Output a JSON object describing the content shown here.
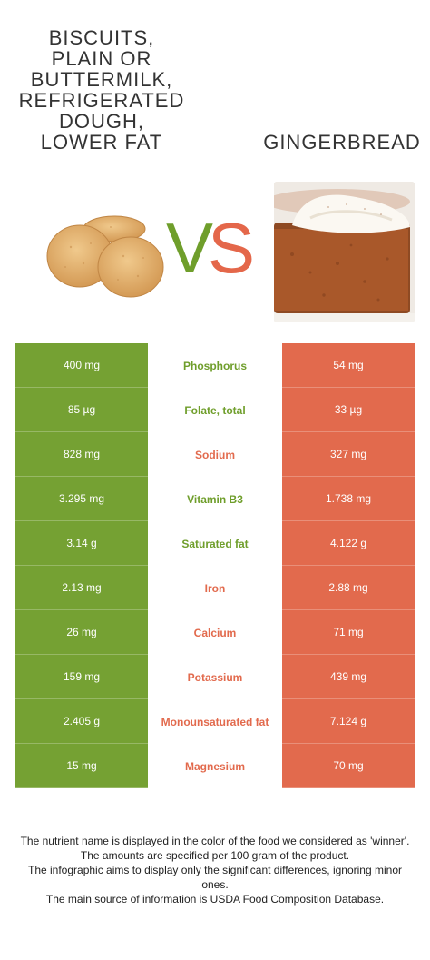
{
  "food_left": {
    "title_lines": [
      "Biscuits,",
      "plain or",
      "buttermilk,",
      "refrigerated",
      "dough,",
      "lower fat"
    ],
    "color": "#75a133"
  },
  "food_right": {
    "title": "Gingerbread",
    "color": "#e26a4d"
  },
  "vs": {
    "v": "V",
    "s": "S"
  },
  "rows": [
    {
      "left": "400 mg",
      "nutrient": "Phosphorus",
      "right": "54 mg",
      "winner": "left"
    },
    {
      "left": "85 µg",
      "nutrient": "Folate, total",
      "right": "33 µg",
      "winner": "left"
    },
    {
      "left": "828 mg",
      "nutrient": "Sodium",
      "right": "327 mg",
      "winner": "right"
    },
    {
      "left": "3.295 mg",
      "nutrient": "Vitamin B3",
      "right": "1.738 mg",
      "winner": "left"
    },
    {
      "left": "3.14 g",
      "nutrient": "Saturated fat",
      "right": "4.122 g",
      "winner": "left"
    },
    {
      "left": "2.13 mg",
      "nutrient": "Iron",
      "right": "2.88 mg",
      "winner": "right"
    },
    {
      "left": "26 mg",
      "nutrient": "Calcium",
      "right": "71 mg",
      "winner": "right"
    },
    {
      "left": "159 mg",
      "nutrient": "Potassium",
      "right": "439 mg",
      "winner": "right"
    },
    {
      "left": "2.405 g",
      "nutrient": "Monounsaturated fat",
      "right": "7.124 g",
      "winner": "right"
    },
    {
      "left": "15 mg",
      "nutrient": "Magnesium",
      "right": "70 mg",
      "winner": "right"
    }
  ],
  "footer": {
    "line1": "The nutrient name is displayed in the color of the food we considered as 'winner'.",
    "line2": "The amounts are specified per 100 gram of the product.",
    "line3": "The infographic aims to display only the significant differences, ignoring minor ones.",
    "line4": "The main source of information is USDA Food Composition Database."
  }
}
